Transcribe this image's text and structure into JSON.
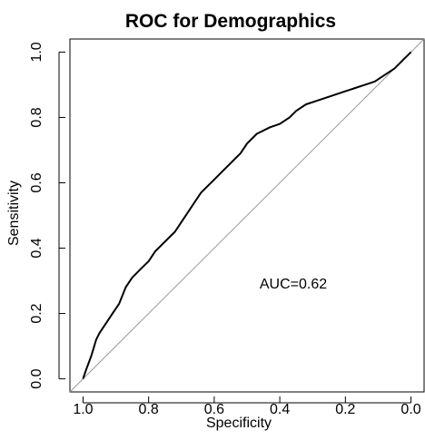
{
  "chart_data": {
    "type": "line",
    "title": "ROC for Demographics",
    "xlabel": "Specificity",
    "ylabel": "Sensitivity",
    "x_reversed": true,
    "xlim": [
      1.04,
      -0.04
    ],
    "ylim": [
      -0.04,
      1.04
    ],
    "x_ticks": [
      "1.0",
      "0.8",
      "0.6",
      "0.4",
      "0.2",
      "0.0"
    ],
    "y_ticks": [
      "0.0",
      "0.2",
      "0.4",
      "0.6",
      "0.8",
      "1.0"
    ],
    "grid": false,
    "annotation": "AUC=0.62",
    "diagonal": {
      "from": [
        1.0,
        0.0
      ],
      "to": [
        0.0,
        1.0
      ],
      "color": "#9a9a9a"
    },
    "series": [
      {
        "color": "#000000",
        "specificity": [
          1.0,
          0.99,
          0.975,
          0.96,
          0.95,
          0.93,
          0.91,
          0.89,
          0.87,
          0.85,
          0.82,
          0.8,
          0.78,
          0.75,
          0.72,
          0.7,
          0.68,
          0.66,
          0.64,
          0.62,
          0.6,
          0.58,
          0.55,
          0.52,
          0.5,
          0.47,
          0.45,
          0.43,
          0.4,
          0.37,
          0.35,
          0.32,
          0.29,
          0.26,
          0.23,
          0.2,
          0.17,
          0.14,
          0.11,
          0.08,
          0.05,
          0.02,
          0.0
        ],
        "sensitivity": [
          0.0,
          0.03,
          0.07,
          0.12,
          0.14,
          0.17,
          0.2,
          0.23,
          0.28,
          0.31,
          0.34,
          0.36,
          0.39,
          0.42,
          0.45,
          0.48,
          0.51,
          0.54,
          0.57,
          0.59,
          0.61,
          0.63,
          0.66,
          0.69,
          0.72,
          0.75,
          0.76,
          0.77,
          0.78,
          0.8,
          0.82,
          0.84,
          0.85,
          0.86,
          0.87,
          0.88,
          0.89,
          0.9,
          0.91,
          0.93,
          0.95,
          0.98,
          1.0
        ]
      }
    ]
  }
}
